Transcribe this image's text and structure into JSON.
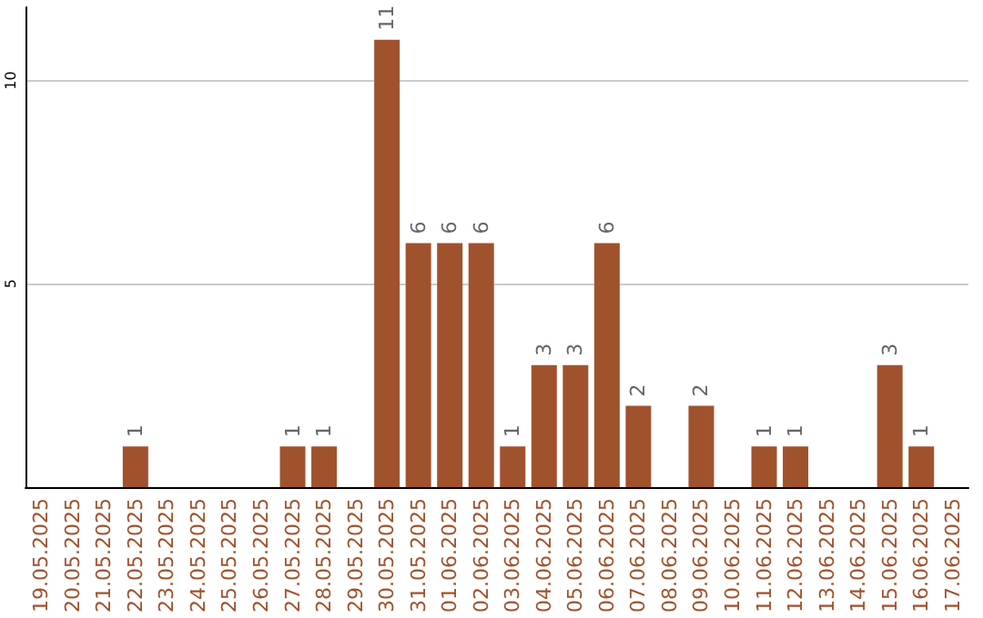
{
  "chart_data": {
    "type": "bar",
    "categories": [
      "19.05.2025",
      "20.05.2025",
      "21.05.2025",
      "22.05.2025",
      "23.05.2025",
      "24.05.2025",
      "25.05.2025",
      "26.05.2025",
      "27.05.2025",
      "28.05.2025",
      "29.05.2025",
      "30.05.2025",
      "31.05.2025",
      "01.06.2025",
      "02.06.2025",
      "03.06.2025",
      "04.06.2025",
      "05.06.2025",
      "06.06.2025",
      "07.06.2025",
      "08.06.2025",
      "09.06.2025",
      "10.06.2025",
      "11.06.2025",
      "12.06.2025",
      "13.06.2025",
      "14.06.2025",
      "15.06.2025",
      "16.06.2025",
      "17.06.2025"
    ],
    "values": [
      0,
      0,
      0,
      1,
      0,
      0,
      0,
      0,
      1,
      1,
      0,
      11,
      6,
      6,
      6,
      1,
      3,
      3,
      6,
      2,
      0,
      2,
      0,
      1,
      1,
      0,
      0,
      3,
      1,
      0
    ],
    "value_labels": [
      null,
      null,
      null,
      "1",
      null,
      null,
      null,
      null,
      "1",
      "1",
      null,
      "11",
      "6",
      "6",
      "6",
      "1",
      "3",
      "3",
      "6",
      "2",
      null,
      "2",
      null,
      "1",
      "1",
      null,
      null,
      "3",
      "1",
      null
    ],
    "color": "#a0522d",
    "ylim": [
      0,
      11.8
    ],
    "yticks": [
      5,
      10
    ],
    "grid": "y"
  }
}
